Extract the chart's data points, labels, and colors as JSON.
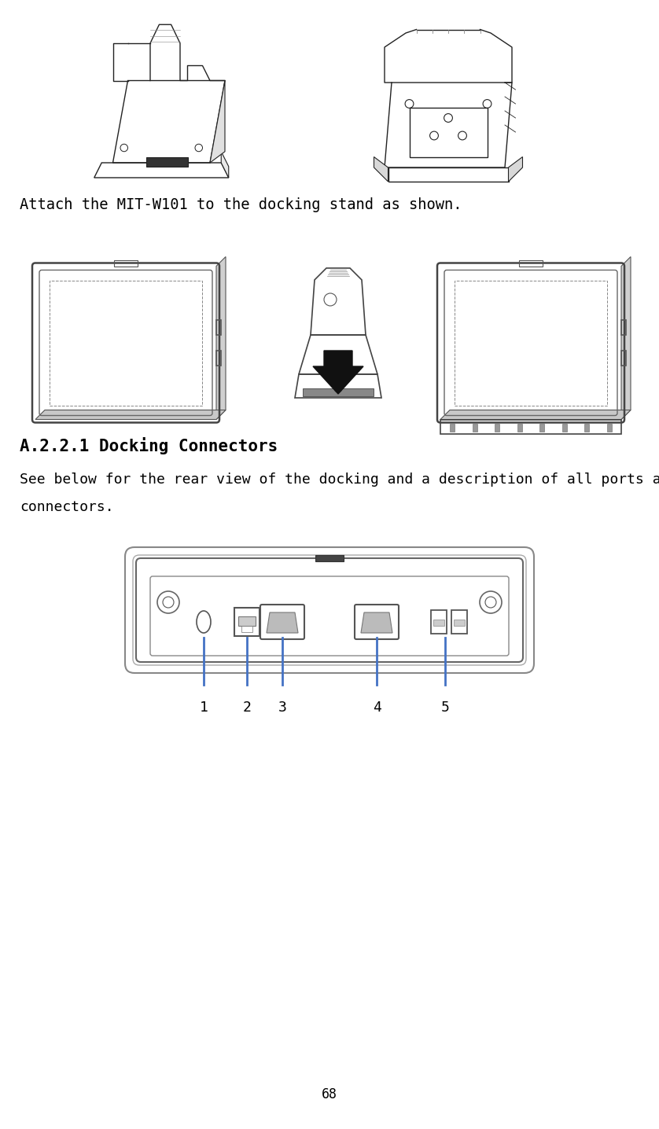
{
  "bg_color": "#ffffff",
  "page_number": "68",
  "text1": "Attach the MIT-W101 to the docking stand as shown.",
  "text1_fontsize": 13.5,
  "section_header": "A.2.2.1 Docking Connectors",
  "section_header_fontsize": 15,
  "text2_line1": "See below for the rear view of the docking and a description of all ports and",
  "text2_line2": "connectors.",
  "body_fontsize": 13,
  "connector_labels": [
    "1",
    "2",
    "3",
    "4",
    "5"
  ],
  "connector_label_fontsize": 12,
  "line_color": "#4472C4",
  "page_num_fontsize": 12,
  "edge_color": "#555555",
  "dark_color": "#222222",
  "mid_color": "#888888",
  "light_color": "#aaaaaa"
}
